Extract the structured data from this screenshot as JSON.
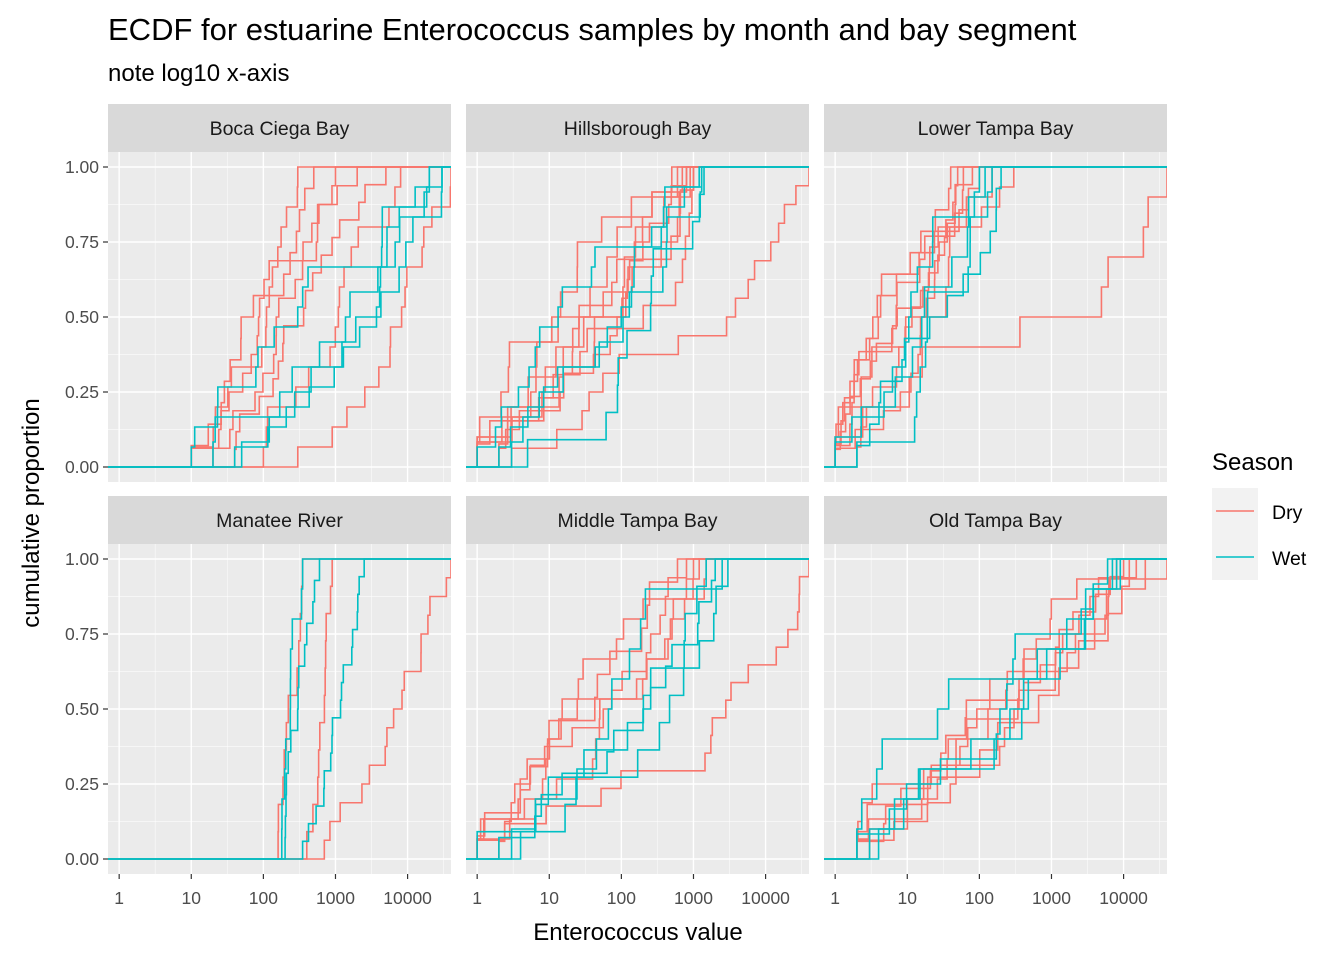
{
  "chart_data": {
    "type": "line",
    "title": "ECDF for estuarine Enterococcus samples by month and bay segment",
    "subtitle": "note log10 x-axis",
    "xlabel": "Enterococcus value",
    "ylabel": "cumulative proportion",
    "x_scale": "log10",
    "xlim": [
      0.7,
      40000
    ],
    "ylim": [
      -0.05,
      1.05
    ],
    "x_ticks": [
      1,
      10,
      100,
      1000,
      10000
    ],
    "x_tick_labels": [
      "1",
      "10",
      "100",
      "1000",
      "10000"
    ],
    "y_ticks": [
      0,
      0.25,
      0.5,
      0.75,
      1
    ],
    "y_tick_labels": [
      "0.00",
      "0.25",
      "0.50",
      "0.75",
      "1.00"
    ],
    "grid": true,
    "legend": {
      "title": "Season",
      "placement": "right",
      "entries": [
        {
          "name": "Dry",
          "color": "#F8766D"
        },
        {
          "name": "Wet",
          "color": "#00BFC4"
        }
      ]
    },
    "colors": {
      "Dry": "#F8766D",
      "Wet": "#00BFC4",
      "panel_bg": "#EBEBEB",
      "strip_bg": "#D9D9D9",
      "grid": "#FFFFFF"
    },
    "panels": [
      {
        "name": "Boca Ciega Bay",
        "series": [
          {
            "season": "Dry",
            "min": 10,
            "max": 300
          },
          {
            "season": "Dry",
            "min": 10,
            "max": 500
          },
          {
            "season": "Dry",
            "min": 10,
            "max": 1000
          },
          {
            "season": "Dry",
            "min": 20,
            "max": 2000
          },
          {
            "season": "Dry",
            "min": 40,
            "max": 5000
          },
          {
            "season": "Dry",
            "min": 100,
            "max": 8000
          },
          {
            "season": "Dry",
            "min": 300,
            "max": 40000
          },
          {
            "season": "Wet",
            "min": 10,
            "max": 20000
          },
          {
            "season": "Wet",
            "min": 20,
            "max": 30000
          },
          {
            "season": "Wet",
            "min": 40,
            "max": 30000
          },
          {
            "season": "Wet",
            "min": 50,
            "max": 20000
          }
        ]
      },
      {
        "name": "Hillsborough Bay",
        "series": [
          {
            "season": "Dry",
            "min": 1,
            "max": 500
          },
          {
            "season": "Dry",
            "min": 1,
            "max": 600
          },
          {
            "season": "Dry",
            "min": 1,
            "max": 700
          },
          {
            "season": "Dry",
            "min": 1,
            "max": 800
          },
          {
            "season": "Dry",
            "min": 1,
            "max": 900
          },
          {
            "season": "Dry",
            "min": 1,
            "max": 1000
          },
          {
            "season": "Dry",
            "min": 2,
            "max": 1000
          },
          {
            "season": "Dry",
            "min": 2,
            "max": 800
          },
          {
            "season": "Dry",
            "min": 3,
            "max": 40000
          },
          {
            "season": "Wet",
            "min": 1,
            "max": 1200
          },
          {
            "season": "Wet",
            "min": 2,
            "max": 1300
          },
          {
            "season": "Wet",
            "min": 3,
            "max": 1300
          },
          {
            "season": "Wet",
            "min": 5,
            "max": 1400
          }
        ]
      },
      {
        "name": "Lower Tampa Bay",
        "series": [
          {
            "season": "Dry",
            "min": 1,
            "max": 40
          },
          {
            "season": "Dry",
            "min": 1,
            "max": 50
          },
          {
            "season": "Dry",
            "min": 1,
            "max": 60
          },
          {
            "season": "Dry",
            "min": 1,
            "max": 80
          },
          {
            "season": "Dry",
            "min": 1,
            "max": 100
          },
          {
            "season": "Dry",
            "min": 1,
            "max": 150
          },
          {
            "season": "Dry",
            "min": 2,
            "max": 300
          },
          {
            "season": "Dry",
            "min": 1,
            "max": 40000
          },
          {
            "season": "Wet",
            "min": 1,
            "max": 100
          },
          {
            "season": "Wet",
            "min": 1,
            "max": 120
          },
          {
            "season": "Wet",
            "min": 2,
            "max": 150
          },
          {
            "season": "Wet",
            "min": 2,
            "max": 200
          }
        ]
      },
      {
        "name": "Manatee River",
        "series": [
          {
            "season": "Dry",
            "min": 160,
            "max": 350
          },
          {
            "season": "Dry",
            "min": 400,
            "max": 900
          },
          {
            "season": "Dry",
            "min": 700,
            "max": 40000
          },
          {
            "season": "Wet",
            "min": 180,
            "max": 350
          },
          {
            "season": "Wet",
            "min": 200,
            "max": 600
          },
          {
            "season": "Wet",
            "min": 350,
            "max": 2500
          }
        ]
      },
      {
        "name": "Middle Tampa Bay",
        "series": [
          {
            "season": "Dry",
            "min": 1,
            "max": 600
          },
          {
            "season": "Dry",
            "min": 1,
            "max": 800
          },
          {
            "season": "Dry",
            "min": 1,
            "max": 1000
          },
          {
            "season": "Dry",
            "min": 1,
            "max": 1200
          },
          {
            "season": "Dry",
            "min": 1,
            "max": 1500
          },
          {
            "season": "Dry",
            "min": 2,
            "max": 40000
          },
          {
            "season": "Wet",
            "min": 1,
            "max": 1500
          },
          {
            "season": "Wet",
            "min": 2,
            "max": 2000
          },
          {
            "season": "Wet",
            "min": 3,
            "max": 2500
          },
          {
            "season": "Wet",
            "min": 4,
            "max": 3000
          }
        ]
      },
      {
        "name": "Old Tampa Bay",
        "series": [
          {
            "season": "Dry",
            "min": 2,
            "max": 8000
          },
          {
            "season": "Dry",
            "min": 2,
            "max": 10000
          },
          {
            "season": "Dry",
            "min": 2,
            "max": 12000
          },
          {
            "season": "Dry",
            "min": 2,
            "max": 15000
          },
          {
            "season": "Dry",
            "min": 3,
            "max": 20000
          },
          {
            "season": "Dry",
            "min": 2,
            "max": 40000
          },
          {
            "season": "Wet",
            "min": 2,
            "max": 6000
          },
          {
            "season": "Wet",
            "min": 2,
            "max": 7000
          },
          {
            "season": "Wet",
            "min": 3,
            "max": 8000
          },
          {
            "season": "Wet",
            "min": 4,
            "max": 9000
          }
        ]
      }
    ]
  }
}
